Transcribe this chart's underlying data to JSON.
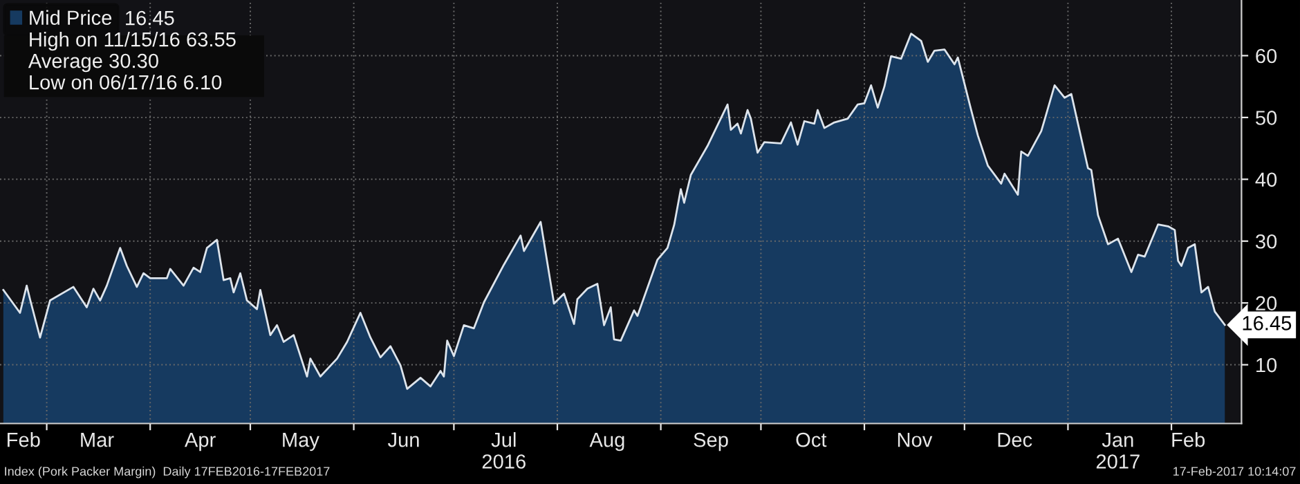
{
  "chart_data": {
    "type": "area",
    "xlim": [
      "2016-02-16",
      "2017-02-22"
    ],
    "ylim": [
      0.5,
      69
    ],
    "yticks": [
      10,
      20,
      30,
      40,
      50,
      60
    ],
    "xticks": [
      {
        "value": "2016-02-23",
        "label": "Feb"
      },
      {
        "value": "2016-03-01",
        "label": null
      },
      {
        "value": "2016-03-16",
        "label": "Mar"
      },
      {
        "value": "2016-04-01",
        "label": null
      },
      {
        "value": "2016-04-16",
        "label": "Apr"
      },
      {
        "value": "2016-05-01",
        "label": null
      },
      {
        "value": "2016-05-16",
        "label": "May"
      },
      {
        "value": "2016-06-01",
        "label": null
      },
      {
        "value": "2016-06-16",
        "label": "Jun"
      },
      {
        "value": "2016-07-01",
        "label": null
      },
      {
        "value": "2016-07-16",
        "label": "Jul\n2016"
      },
      {
        "value": "2016-08-01",
        "label": null
      },
      {
        "value": "2016-08-16",
        "label": "Aug"
      },
      {
        "value": "2016-09-01",
        "label": null
      },
      {
        "value": "2016-09-16",
        "label": "Sep"
      },
      {
        "value": "2016-10-01",
        "label": null
      },
      {
        "value": "2016-10-16",
        "label": "Oct"
      },
      {
        "value": "2016-11-01",
        "label": null
      },
      {
        "value": "2016-11-16",
        "label": "Nov"
      },
      {
        "value": "2016-12-01",
        "label": null
      },
      {
        "value": "2016-12-16",
        "label": "Dec"
      },
      {
        "value": "2017-01-01",
        "label": null
      },
      {
        "value": "2017-01-16",
        "label": "Jan\n2017"
      },
      {
        "value": "2017-02-01",
        "label": null
      },
      {
        "value": "2017-02-06",
        "label": "Feb"
      }
    ],
    "grid": true,
    "legend": "top left",
    "series": [
      {
        "name": "Mid Price",
        "color": "#163a60",
        "x": [
          "2016-02-17",
          "2016-02-22",
          "2016-02-24",
          "2016-02-25",
          "2016-02-28",
          "2016-03-02",
          "2016-03-09",
          "2016-03-13",
          "2016-03-15",
          "2016-03-17",
          "2016-03-19",
          "2016-03-23",
          "2016-03-25",
          "2016-03-28",
          "2016-03-30",
          "2016-04-01",
          "2016-04-06",
          "2016-04-07",
          "2016-04-11",
          "2016-04-14",
          "2016-04-16",
          "2016-04-18",
          "2016-04-21",
          "2016-04-23",
          "2016-04-25",
          "2016-04-26",
          "2016-04-28",
          "2016-04-30",
          "2016-05-03",
          "2016-05-04",
          "2016-05-07",
          "2016-05-09",
          "2016-05-11",
          "2016-05-14",
          "2016-05-18",
          "2016-05-19",
          "2016-05-22",
          "2016-05-27",
          "2016-05-30",
          "2016-06-03",
          "2016-06-06",
          "2016-06-09",
          "2016-06-12",
          "2016-06-15",
          "2016-06-17",
          "2016-06-21",
          "2016-06-24",
          "2016-06-27",
          "2016-06-28",
          "2016-06-29",
          "2016-07-01",
          "2016-07-04",
          "2016-07-07",
          "2016-07-10",
          "2016-07-16",
          "2016-07-21",
          "2016-07-22",
          "2016-07-27",
          "2016-07-31",
          "2016-08-03",
          "2016-08-06",
          "2016-08-07",
          "2016-08-10",
          "2016-08-13",
          "2016-08-15",
          "2016-08-17",
          "2016-08-18",
          "2016-08-20",
          "2016-08-24",
          "2016-08-25",
          "2016-08-31",
          "2016-09-03",
          "2016-09-05",
          "2016-09-07",
          "2016-09-08",
          "2016-09-10",
          "2016-09-15",
          "2016-09-21",
          "2016-09-22",
          "2016-09-24",
          "2016-09-25",
          "2016-09-27",
          "2016-09-28",
          "2016-09-30",
          "2016-10-02",
          "2016-10-07",
          "2016-10-10",
          "2016-10-12",
          "2016-10-14",
          "2016-10-17",
          "2016-10-18",
          "2016-10-20",
          "2016-10-23",
          "2016-10-27",
          "2016-10-30",
          "2016-11-01",
          "2016-11-03",
          "2016-11-05",
          "2016-11-07",
          "2016-11-09",
          "2016-11-12",
          "2016-11-15",
          "2016-11-18",
          "2016-11-20",
          "2016-11-22",
          "2016-11-25",
          "2016-11-28",
          "2016-11-29",
          "2016-12-03",
          "2016-12-05",
          "2016-12-08",
          "2016-12-12",
          "2016-12-13",
          "2016-12-17",
          "2016-12-18",
          "2016-12-20",
          "2016-12-24",
          "2016-12-25",
          "2016-12-28",
          "2016-12-31",
          "2017-01-02",
          "2017-01-07",
          "2017-01-08",
          "2017-01-10",
          "2017-01-13",
          "2017-01-16",
          "2017-01-20",
          "2017-01-22",
          "2017-01-24",
          "2017-01-28",
          "2017-01-31",
          "2017-02-02",
          "2017-02-03",
          "2017-02-04",
          "2017-02-06",
          "2017-02-08",
          "2017-02-10",
          "2017-02-12",
          "2017-02-14",
          "2017-02-17"
        ],
        "values": [
          22.1,
          18.4,
          22.8,
          20.6,
          14.4,
          20.4,
          22.6,
          19.3,
          22.3,
          20.4,
          22.8,
          28.9,
          26,
          22.6,
          24.8,
          24,
          24,
          25.5,
          22.8,
          25.7,
          25,
          28.9,
          30.2,
          23.7,
          24,
          21.7,
          24.8,
          20.4,
          19,
          22.1,
          14.8,
          16.4,
          13.7,
          14.8,
          8.1,
          11,
          8.1,
          11,
          13.7,
          18.4,
          14.4,
          11.2,
          13,
          9.9,
          6.1,
          7.9,
          6.5,
          9.0,
          8.1,
          13.9,
          11.4,
          16.4,
          15.9,
          20.1,
          26.2,
          30.9,
          28.4,
          33.1,
          19.9,
          21.5,
          16.6,
          20.6,
          22.3,
          23.1,
          16.4,
          19.3,
          14.1,
          13.9,
          18.8,
          17.9,
          27,
          28.9,
          32.6,
          38.4,
          36.2,
          40.7,
          45.4,
          52.1,
          48,
          49,
          47.4,
          51.2,
          49.8,
          44.3,
          46,
          45.8,
          49.2,
          45.6,
          49.4,
          49,
          51.2,
          48.3,
          49.2,
          49.8,
          52.1,
          52.3,
          55.2,
          51.6,
          55,
          59.9,
          59.5,
          63.55,
          62.4,
          59,
          60.8,
          61,
          58.6,
          59.7,
          51.2,
          47.1,
          42.2,
          39.3,
          40.9,
          37.5,
          44.5,
          43.8,
          47.8,
          49.6,
          55.2,
          53.2,
          53.8,
          41.8,
          41.5,
          34.2,
          29.5,
          30.4,
          25,
          27.8,
          27.5,
          32.7,
          32.4,
          31.8,
          26.8,
          26,
          28.9,
          29.5,
          21.7,
          22.6,
          18.6,
          16.45
        ]
      }
    ],
    "annotations": [
      "16.45",
      "High on 11/15/16 63.55",
      "Average 30.30",
      "Low on 06/17/16 6.10",
      "Index (Pork Packer Margin)  Daily 17FEB2016-17FEB2017",
      "17-Feb-2017 10:14:07",
      {
        "text": "16.45",
        "x": "2017-02-17",
        "y": 16.45
      }
    ]
  }
}
